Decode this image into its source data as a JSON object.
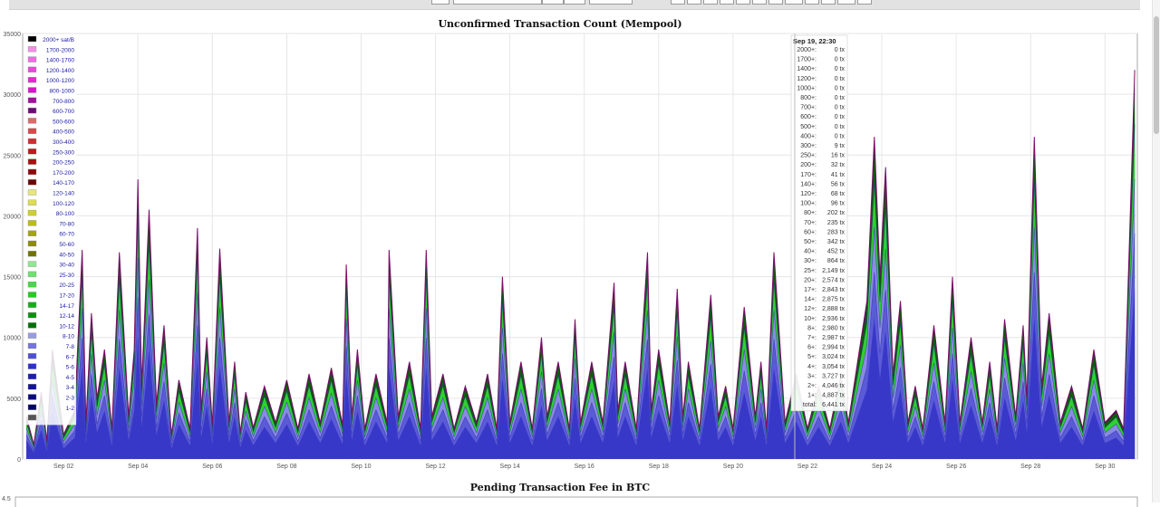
{
  "chart_data": [
    {
      "type": "area",
      "title": "Unconfirmed Transaction Count (Mempool)",
      "stacked": true,
      "xlabel": "",
      "ylabel": "",
      "ylim": [
        0,
        35000
      ],
      "y_ticks": [
        "35000",
        "30000",
        "25000",
        "20000",
        "15000",
        "10000",
        "5000",
        "0"
      ],
      "x_ticks": [
        "Sep 02",
        "Sep 04",
        "Sep 06",
        "Sep 08",
        "Sep 10",
        "Sep 12",
        "Sep 14",
        "Sep 16",
        "Sep 18",
        "Sep 20",
        "Sep 22",
        "Sep 24",
        "Sep 26",
        "Sep 28",
        "Sep 30"
      ],
      "grid": true,
      "legend_position": "top-left inside",
      "legend": [
        {
          "label": "2000+ sat/B",
          "color": "#000000"
        },
        {
          "label": "1700-2000",
          "color": "#f28ee6"
        },
        {
          "label": "1400-1700",
          "color": "#ec6ee0"
        },
        {
          "label": "1200-1400",
          "color": "#e649d8"
        },
        {
          "label": "1000-1200",
          "color": "#e329d6"
        },
        {
          "label": "800-1000",
          "color": "#d616c9"
        },
        {
          "label": "700-800",
          "color": "#a0109b"
        },
        {
          "label": "600-700",
          "color": "#6a0e75"
        },
        {
          "label": "500-600",
          "color": "#e06a6a"
        },
        {
          "label": "400-500",
          "color": "#d44a4a"
        },
        {
          "label": "300-400",
          "color": "#c93030"
        },
        {
          "label": "250-300",
          "color": "#bb1c1c"
        },
        {
          "label": "200-250",
          "color": "#a81010"
        },
        {
          "label": "170-200",
          "color": "#900909"
        },
        {
          "label": "140-170",
          "color": "#6e0505"
        },
        {
          "label": "120-140",
          "color": "#e6e67a"
        },
        {
          "label": "100-120",
          "color": "#dcdc55"
        },
        {
          "label": "80-100",
          "color": "#cfcf30"
        },
        {
          "label": "70-80",
          "color": "#bcbc18"
        },
        {
          "label": "60-70",
          "color": "#a4a410"
        },
        {
          "label": "50-60",
          "color": "#8c8c08"
        },
        {
          "label": "40-50",
          "color": "#727204"
        },
        {
          "label": "30-40",
          "color": "#92e692"
        },
        {
          "label": "25-30",
          "color": "#6ee06e"
        },
        {
          "label": "20-25",
          "color": "#46d846"
        },
        {
          "label": "17-20",
          "color": "#22cc22"
        },
        {
          "label": "14-17",
          "color": "#12b012"
        },
        {
          "label": "12-14",
          "color": "#0b900b"
        },
        {
          "label": "10-12",
          "color": "#057005"
        },
        {
          "label": "8-10",
          "color": "#9a9ae8"
        },
        {
          "label": "7-8",
          "color": "#7474e0"
        },
        {
          "label": "6-7",
          "color": "#4f4fd6"
        },
        {
          "label": "5-6",
          "color": "#2e2ecc"
        },
        {
          "label": "4-5",
          "color": "#1c1cb4"
        },
        {
          "label": "3-4",
          "color": "#12129a"
        },
        {
          "label": "2-3",
          "color": "#0a0a80"
        },
        {
          "label": "1-2",
          "color": "#040466"
        },
        {
          "label": "",
          "color": "#555555"
        }
      ],
      "tooltip": {
        "header": "Sep 19, 22:30",
        "rows": [
          {
            "label": "2000+:",
            "value": "0 tx"
          },
          {
            "label": "1700+:",
            "value": "0 tx"
          },
          {
            "label": "1400+:",
            "value": "0 tx"
          },
          {
            "label": "1200+:",
            "value": "0 tx"
          },
          {
            "label": "1000+:",
            "value": "0 tx"
          },
          {
            "label": "800+:",
            "value": "0 tx"
          },
          {
            "label": "700+:",
            "value": "0 tx"
          },
          {
            "label": "600+:",
            "value": "0 tx"
          },
          {
            "label": "500+:",
            "value": "0 tx"
          },
          {
            "label": "400+:",
            "value": "0 tx"
          },
          {
            "label": "300+:",
            "value": "9 tx"
          },
          {
            "label": "250+:",
            "value": "16 tx"
          },
          {
            "label": "200+:",
            "value": "32 tx"
          },
          {
            "label": "170+:",
            "value": "41 tx"
          },
          {
            "label": "140+:",
            "value": "56 tx"
          },
          {
            "label": "120+:",
            "value": "68 tx"
          },
          {
            "label": "100+:",
            "value": "96 tx"
          },
          {
            "label": "80+:",
            "value": "202 tx"
          },
          {
            "label": "70+:",
            "value": "235 tx"
          },
          {
            "label": "60+:",
            "value": "283 tx"
          },
          {
            "label": "50+:",
            "value": "342 tx"
          },
          {
            "label": "40+:",
            "value": "452 tx"
          },
          {
            "label": "30+:",
            "value": "864 tx"
          },
          {
            "label": "25+:",
            "value": "2,149 tx"
          },
          {
            "label": "20+:",
            "value": "2,574 tx"
          },
          {
            "label": "17+:",
            "value": "2,843 tx"
          },
          {
            "label": "14+:",
            "value": "2,875 tx"
          },
          {
            "label": "12+:",
            "value": "2,888 tx"
          },
          {
            "label": "10+:",
            "value": "2,936 tx"
          },
          {
            "label": "8+:",
            "value": "2,980 tx"
          },
          {
            "label": "7+:",
            "value": "2,987 tx"
          },
          {
            "label": "6+:",
            "value": "2,994 tx"
          },
          {
            "label": "5+:",
            "value": "3,024 tx"
          },
          {
            "label": "4+:",
            "value": "3,054 tx"
          },
          {
            "label": "3+:",
            "value": "3,727 tx"
          },
          {
            "label": "2+:",
            "value": "4,046 tx"
          },
          {
            "label": "1+:",
            "value": "4,887 tx"
          },
          {
            "label": "total:",
            "value": "6,441 tx"
          }
        ]
      },
      "total_series": {
        "x_day": [
          1.0,
          1.2,
          1.4,
          1.55,
          1.7,
          2.0,
          2.3,
          2.5,
          2.6,
          2.75,
          2.9,
          3.1,
          3.3,
          3.5,
          3.75,
          3.9,
          4.0,
          4.1,
          4.3,
          4.5,
          4.7,
          4.9,
          5.1,
          5.4,
          5.6,
          5.7,
          5.85,
          6.0,
          6.2,
          6.45,
          6.6,
          6.75,
          6.9,
          7.1,
          7.4,
          7.7,
          8.0,
          8.3,
          8.6,
          8.9,
          9.2,
          9.5,
          9.6,
          9.75,
          9.9,
          10.1,
          10.4,
          10.7,
          10.75,
          11.0,
          11.3,
          11.6,
          11.75,
          11.9,
          12.2,
          12.5,
          12.8,
          13.1,
          13.4,
          13.65,
          13.8,
          14.0,
          14.3,
          14.6,
          14.85,
          15.0,
          15.3,
          15.6,
          15.75,
          15.9,
          16.2,
          16.5,
          16.8,
          16.9,
          17.1,
          17.4,
          17.7,
          17.8,
          18.0,
          18.3,
          18.5,
          18.65,
          18.8,
          19.1,
          19.4,
          19.6,
          19.8,
          20.0,
          20.3,
          20.6,
          20.75,
          20.9,
          21.1,
          21.4,
          21.7,
          22.0,
          22.3,
          22.6,
          22.9,
          23.1,
          23.4,
          23.6,
          23.8,
          23.95,
          24.1,
          24.3,
          24.5,
          24.7,
          24.9,
          25.1,
          25.4,
          25.7,
          25.9,
          26.1,
          26.4,
          26.7,
          26.9,
          27.1,
          27.3,
          27.6,
          27.8,
          27.9,
          28.1,
          28.3,
          28.5,
          28.8,
          29.1,
          29.4,
          29.7,
          30.0,
          30.3,
          30.5,
          30.7,
          30.8
        ],
        "values": [
          3500,
          1200,
          5500,
          1500,
          9000,
          2000,
          4000,
          17200,
          3000,
          12000,
          5000,
          9000,
          2500,
          17000,
          3500,
          9000,
          23000,
          6000,
          20500,
          4500,
          11000,
          2000,
          6500,
          2500,
          19000,
          4000,
          10000,
          2800,
          17300,
          3000,
          8000,
          2200,
          5500,
          2600,
          6000,
          3000,
          6500,
          2500,
          7000,
          3000,
          7500,
          2800,
          16000,
          3500,
          9000,
          2500,
          7000,
          3000,
          17200,
          3500,
          8000,
          2500,
          17200,
          3500,
          7000,
          2500,
          6000,
          3000,
          7000,
          2500,
          15000,
          3000,
          8000,
          2500,
          10000,
          3500,
          8000,
          2500,
          11500,
          3000,
          8000,
          3000,
          14500,
          4000,
          8000,
          2500,
          17000,
          4000,
          9000,
          3000,
          14000,
          3500,
          8000,
          2500,
          13500,
          3500,
          6000,
          2500,
          12500,
          3500,
          8000,
          2500,
          17000,
          3000,
          7000,
          2500,
          6000,
          2500,
          7000,
          3000,
          9000,
          13000,
          26500,
          15000,
          24000,
          7000,
          13000,
          3000,
          6000,
          2500,
          11000,
          3000,
          15000,
          3000,
          10000,
          3000,
          8000,
          2500,
          11500,
          3500,
          11000,
          5000,
          26500,
          6000,
          12000,
          3000,
          6000,
          2500,
          9000,
          3000,
          4000,
          2500,
          22000,
          32000
        ]
      }
    },
    {
      "type": "area",
      "title": "Pending Transaction Fee in BTC",
      "y_ticks": [
        "4.5"
      ]
    }
  ]
}
